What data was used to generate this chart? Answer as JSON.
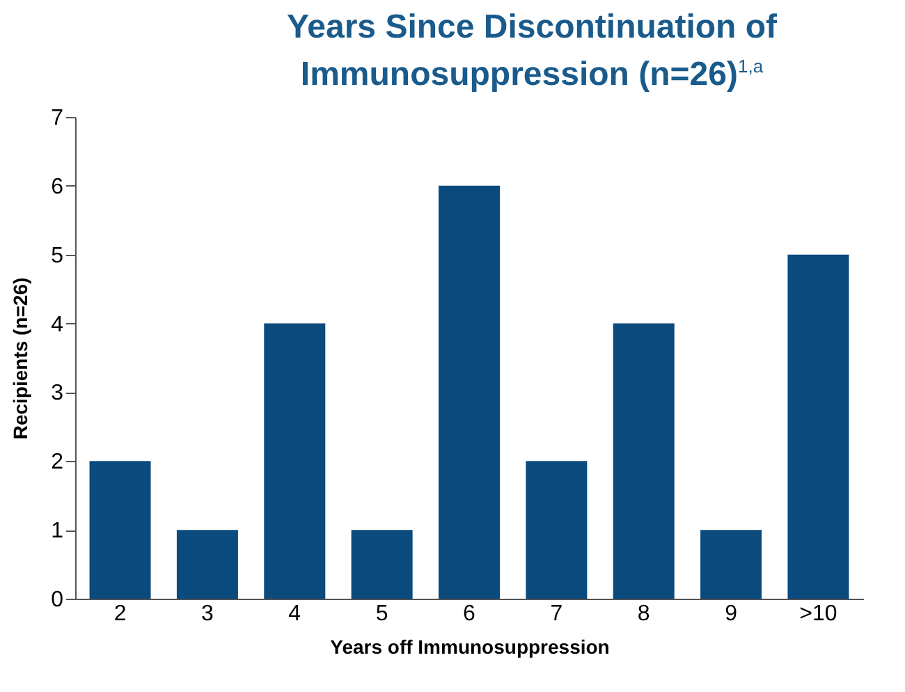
{
  "chart_data": {
    "type": "bar",
    "title": "Years Since Discontinuation of Immunosuppression (n=26)$^{1,a}$",
    "xlabel": "Years off Immunosuppression",
    "ylabel": "Recipients (n=26)",
    "categories": [
      "2",
      "3",
      "4",
      "5",
      "6",
      "7",
      "8",
      "9",
      ">10"
    ],
    "values": [
      2,
      1,
      4,
      1,
      6,
      2,
      4,
      1,
      5
    ],
    "color": "#0b4a7d",
    "ylim": [
      0,
      7
    ],
    "yticks": [
      0,
      1,
      2,
      3,
      4,
      5,
      6,
      7
    ],
    "grid": false
  }
}
